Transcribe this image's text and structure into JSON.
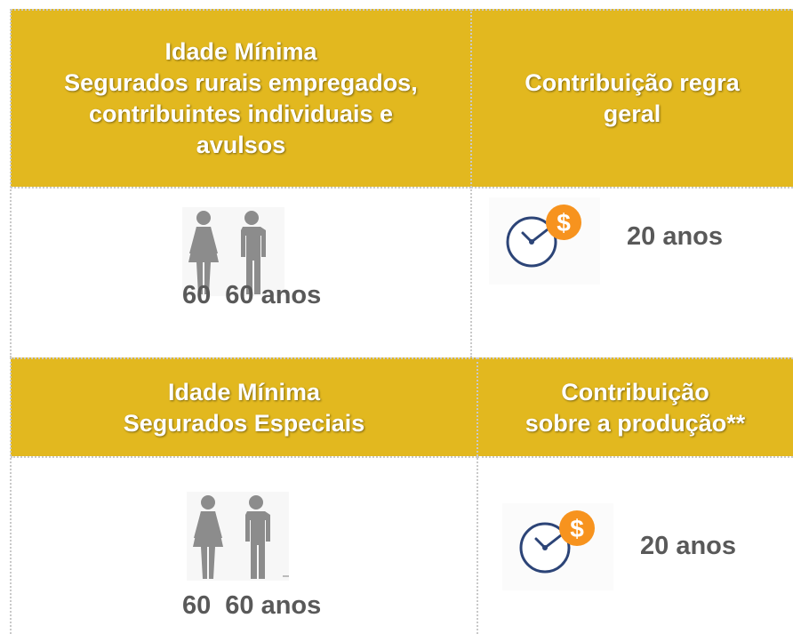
{
  "sections": [
    {
      "age_header": [
        "Idade Mínima",
        "Segurados rurais empregados,",
        "contribuintes individuais e",
        "avulsos"
      ],
      "contribution_header": [
        "Contribuição regra",
        "geral"
      ],
      "age_woman": "60",
      "age_man": "60 anos",
      "contribution": "20 anos"
    },
    {
      "age_header": [
        "Idade Mínima",
        "Segurados Especiais"
      ],
      "contribution_header": [
        "Contribuição",
        "sobre a produção**"
      ],
      "age_woman": "60",
      "age_man": "60 anos",
      "contribution": "20 anos"
    }
  ],
  "currency_symbol": "$"
}
